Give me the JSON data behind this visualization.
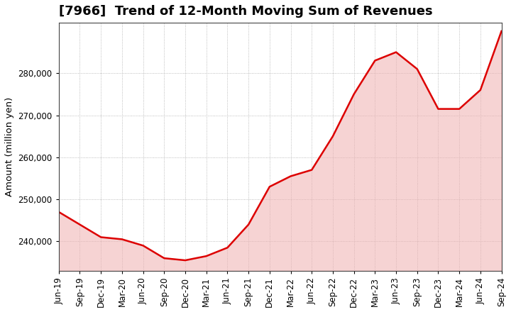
{
  "title": "[7966]  Trend of 12-Month Moving Sum of Revenues",
  "ylabel": "Amount (million yen)",
  "line_color": "#dd0000",
  "background_color": "#ffffff",
  "plot_bg_color": "#ffffff",
  "grid_color": "#aaaaaa",
  "x_labels": [
    "Jun-19",
    "Sep-19",
    "Dec-19",
    "Mar-20",
    "Jun-20",
    "Sep-20",
    "Dec-20",
    "Mar-21",
    "Jun-21",
    "Sep-21",
    "Dec-21",
    "Mar-22",
    "Jun-22",
    "Sep-22",
    "Dec-22",
    "Mar-23",
    "Jun-23",
    "Sep-23",
    "Dec-23",
    "Mar-24",
    "Jun-24",
    "Sep-24"
  ],
  "y_values": [
    247000,
    244000,
    241000,
    240500,
    239000,
    236000,
    235500,
    236500,
    238500,
    244000,
    253000,
    255500,
    257000,
    265000,
    275000,
    283000,
    285000,
    281000,
    271500,
    271500,
    276000,
    290000
  ],
  "ylim": [
    233000,
    292000
  ],
  "yticks": [
    240000,
    250000,
    260000,
    270000,
    280000
  ],
  "title_fontsize": 13,
  "tick_fontsize": 8.5,
  "label_fontsize": 9.5,
  "line_width": 1.8,
  "fill_color": "#f0b0b0",
  "fill_alpha": 0.55
}
